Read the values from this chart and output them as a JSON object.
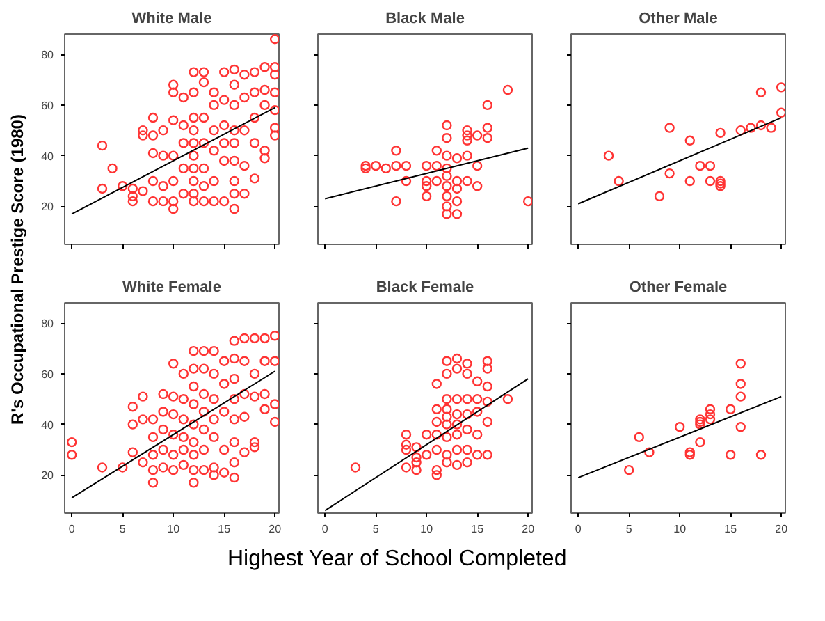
{
  "chart_data": [
    {
      "type": "scatter",
      "title": "White Male",
      "ylabel": "R's Occupational Prestige Score (1980)",
      "xlim": [
        -0.7,
        20.4
      ],
      "ylim": [
        5,
        88
      ],
      "xticks": [
        0,
        5,
        10,
        15,
        20
      ],
      "yticks": [
        20,
        40,
        60,
        80
      ],
      "tick_labels": "y",
      "grid": false,
      "marker": "circle",
      "series": [
        {
          "color": "#ff3333",
          "x": [
            3,
            3,
            4,
            5,
            6,
            6,
            6,
            7,
            7,
            7,
            8,
            8,
            8,
            8,
            8,
            9,
            9,
            9,
            9,
            10,
            10,
            10,
            10,
            10,
            10,
            10,
            11,
            11,
            11,
            11,
            11,
            12,
            12,
            12,
            12,
            12,
            12,
            12,
            12,
            12,
            12,
            13,
            13,
            13,
            13,
            13,
            13,
            13,
            14,
            14,
            14,
            14,
            14,
            14,
            15,
            15,
            15,
            15,
            15,
            15,
            16,
            16,
            16,
            16,
            16,
            16,
            16,
            16,
            16,
            17,
            17,
            17,
            17,
            17,
            18,
            18,
            18,
            18,
            18,
            19,
            19,
            19,
            19,
            19,
            20,
            20,
            20,
            20,
            20,
            20,
            20
          ],
          "values": [
            44,
            27,
            35,
            28,
            27,
            22,
            24,
            26,
            50,
            48,
            48,
            55,
            41,
            30,
            22,
            50,
            40,
            28,
            22,
            68,
            65,
            54,
            40,
            30,
            19,
            22,
            63,
            52,
            45,
            35,
            25,
            73,
            65,
            55,
            50,
            45,
            40,
            35,
            30,
            25,
            22,
            73,
            69,
            55,
            45,
            35,
            28,
            22,
            65,
            60,
            50,
            42,
            30,
            22,
            73,
            62,
            52,
            45,
            38,
            22,
            74,
            68,
            60,
            50,
            45,
            38,
            30,
            19,
            25,
            72,
            63,
            50,
            36,
            25,
            73,
            65,
            55,
            45,
            31,
            75,
            66,
            42,
            39,
            60,
            86,
            75,
            72,
            65,
            58,
            51,
            48
          ]
        },
        {
          "type": "line",
          "line_style": "solid",
          "color": "#000000",
          "x": [
            0,
            20
          ],
          "values": [
            17,
            59
          ],
          "marker": "none"
        }
      ]
    },
    {
      "type": "scatter",
      "title": "Black Male",
      "xlim": [
        -0.7,
        20.4
      ],
      "ylim": [
        5,
        88
      ],
      "xticks": [
        0,
        5,
        10,
        15,
        20
      ],
      "yticks": [
        20,
        40,
        60,
        80
      ],
      "tick_labels": false,
      "grid": false,
      "marker": "circle",
      "series": [
        {
          "color": "#ff3333",
          "x": [
            4,
            4,
            5,
            6,
            7,
            7,
            7,
            8,
            8,
            10,
            10,
            10,
            10,
            11,
            11,
            11,
            12,
            12,
            12,
            12,
            12,
            12,
            12,
            12,
            12,
            13,
            13,
            13,
            13,
            13,
            14,
            14,
            14,
            14,
            14,
            15,
            15,
            15,
            16,
            16,
            16,
            18,
            20
          ],
          "values": [
            36,
            35,
            36,
            35,
            22,
            42,
            36,
            36,
            30,
            36,
            30,
            28,
            24,
            36,
            30,
            42,
            52,
            47,
            40,
            35,
            32,
            28,
            24,
            20,
            17,
            39,
            30,
            27,
            22,
            17,
            40,
            50,
            48,
            46,
            30,
            48,
            36,
            28,
            51,
            47,
            60,
            66,
            22
          ]
        },
        {
          "type": "line",
          "line_style": "solid",
          "color": "#000000",
          "x": [
            0,
            20
          ],
          "values": [
            23,
            43
          ],
          "marker": "none"
        }
      ]
    },
    {
      "type": "scatter",
      "title": "Other Male",
      "xlim": [
        -0.7,
        20.4
      ],
      "ylim": [
        5,
        88
      ],
      "xticks": [
        0,
        5,
        10,
        15,
        20
      ],
      "yticks": [
        20,
        40,
        60,
        80
      ],
      "tick_labels": false,
      "grid": false,
      "marker": "circle",
      "series": [
        {
          "color": "#ff3333",
          "x": [
            3,
            4,
            8,
            9,
            9,
            11,
            11,
            12,
            13,
            13,
            14,
            14,
            14,
            14,
            16,
            17,
            18,
            18,
            19,
            20,
            20
          ],
          "values": [
            40,
            30,
            24,
            33,
            51,
            30,
            46,
            36,
            36,
            30,
            30,
            29,
            28,
            49,
            50,
            51,
            52,
            65,
            51,
            57,
            67
          ]
        },
        {
          "type": "line",
          "line_style": "solid",
          "color": "#000000",
          "x": [
            0,
            20
          ],
          "values": [
            21,
            55
          ],
          "marker": "none"
        }
      ]
    },
    {
      "type": "scatter",
      "title": "White Female",
      "xlim": [
        -0.7,
        20.4
      ],
      "ylim": [
        5,
        88
      ],
      "xticks": [
        0,
        5,
        10,
        15,
        20
      ],
      "yticks": [
        20,
        40,
        60,
        80
      ],
      "grid": false,
      "marker": "circle",
      "series": [
        {
          "color": "#ff3333",
          "x": [
            0,
            0,
            3,
            5,
            6,
            6,
            6,
            7,
            7,
            7,
            8,
            8,
            8,
            8,
            8,
            9,
            9,
            9,
            9,
            9,
            10,
            10,
            10,
            10,
            10,
            10,
            11,
            11,
            11,
            11,
            11,
            11,
            12,
            12,
            12,
            12,
            12,
            12,
            12,
            12,
            12,
            13,
            13,
            13,
            13,
            13,
            13,
            13,
            14,
            14,
            14,
            14,
            14,
            14,
            14,
            15,
            15,
            15,
            15,
            15,
            16,
            16,
            16,
            16,
            16,
            16,
            16,
            16,
            17,
            17,
            17,
            17,
            17,
            18,
            18,
            18,
            18,
            18,
            19,
            19,
            19,
            19,
            20,
            20,
            20,
            20
          ],
          "values": [
            33,
            28,
            23,
            23,
            47,
            40,
            29,
            51,
            42,
            25,
            42,
            35,
            28,
            22,
            17,
            52,
            45,
            38,
            30,
            23,
            64,
            51,
            44,
            36,
            28,
            22,
            60,
            50,
            42,
            35,
            30,
            24,
            69,
            62,
            55,
            48,
            40,
            33,
            28,
            22,
            17,
            69,
            62,
            52,
            45,
            38,
            30,
            22,
            69,
            60,
            50,
            42,
            35,
            23,
            20,
            65,
            56,
            45,
            30,
            21,
            73,
            66,
            58,
            50,
            42,
            33,
            25,
            19,
            74,
            65,
            52,
            43,
            29,
            74,
            60,
            51,
            33,
            31,
            74,
            65,
            52,
            46,
            75,
            65,
            48,
            41
          ]
        },
        {
          "type": "line",
          "line_style": "solid",
          "color": "#000000",
          "x": [
            0,
            20
          ],
          "values": [
            11,
            61
          ],
          "marker": "none"
        }
      ]
    },
    {
      "type": "scatter",
      "title": "Black Female",
      "xlabel": "Highest Year of School Completed",
      "xlim": [
        -0.7,
        20.4
      ],
      "ylim": [
        5,
        88
      ],
      "xticks": [
        0,
        5,
        10,
        15,
        20
      ],
      "yticks": [
        20,
        40,
        60,
        80
      ],
      "tick_labels": "x",
      "grid": false,
      "marker": "circle",
      "series": [
        {
          "color": "#ff3333",
          "x": [
            3,
            8,
            8,
            8,
            8,
            9,
            9,
            9,
            9,
            10,
            10,
            11,
            11,
            11,
            11,
            11,
            11,
            11,
            12,
            12,
            12,
            12,
            12,
            12,
            12,
            12,
            12,
            13,
            13,
            13,
            13,
            13,
            13,
            13,
            13,
            14,
            14,
            14,
            14,
            14,
            14,
            14,
            15,
            15,
            15,
            15,
            15,
            16,
            16,
            16,
            16,
            16,
            16,
            18
          ],
          "values": [
            23,
            36,
            32,
            30,
            23,
            31,
            27,
            25,
            22,
            36,
            28,
            56,
            46,
            41,
            36,
            30,
            22,
            20,
            65,
            60,
            50,
            46,
            43,
            40,
            35,
            28,
            25,
            66,
            62,
            50,
            44,
            40,
            36,
            30,
            24,
            64,
            60,
            50,
            44,
            38,
            30,
            25,
            57,
            50,
            45,
            36,
            28,
            65,
            62,
            55,
            49,
            41,
            28,
            50
          ]
        },
        {
          "type": "line",
          "line_style": "solid",
          "color": "#000000",
          "x": [
            0,
            20
          ],
          "values": [
            6,
            58
          ],
          "marker": "none"
        }
      ]
    },
    {
      "type": "scatter",
      "title": "Other Female",
      "xlim": [
        -0.7,
        20.4
      ],
      "ylim": [
        5,
        88
      ],
      "xticks": [
        0,
        5,
        10,
        15,
        20
      ],
      "yticks": [
        20,
        40,
        60,
        80
      ],
      "tick_labels": "x",
      "grid": false,
      "marker": "circle",
      "series": [
        {
          "color": "#ff3333",
          "x": [
            5,
            6,
            7,
            10,
            11,
            11,
            12,
            12,
            12,
            12,
            13,
            13,
            13,
            15,
            15,
            16,
            16,
            16,
            16,
            18
          ],
          "values": [
            22,
            35,
            29,
            39,
            29,
            28,
            33,
            41,
            42,
            40,
            46,
            44,
            42,
            46,
            28,
            39,
            51,
            56,
            64,
            28
          ]
        },
        {
          "type": "line",
          "line_style": "solid",
          "color": "#000000",
          "x": [
            0,
            20
          ],
          "values": [
            19,
            51
          ],
          "marker": "none"
        }
      ]
    }
  ]
}
